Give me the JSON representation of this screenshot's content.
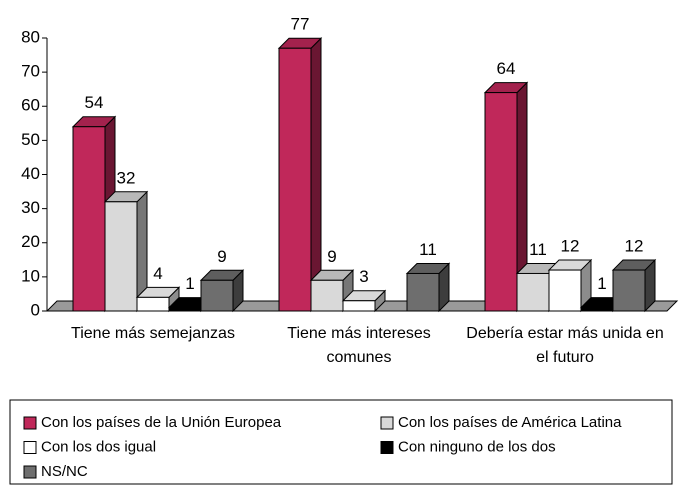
{
  "chart_data": {
    "type": "bar3d",
    "categories": [
      "Tiene más semejanzas",
      "Tiene más intereses comunes",
      "Debería estar más unida en el futuro"
    ],
    "series": [
      {
        "name": "Con los países de la Unión Europea",
        "color": "#c0285a",
        "values": [
          54,
          77,
          64
        ]
      },
      {
        "name": "Con los países de América Latina",
        "color": "#d9d9d9",
        "values": [
          32,
          9,
          11
        ]
      },
      {
        "name": "Con los dos igual",
        "color": "#ffffff",
        "values": [
          4,
          3,
          12
        ]
      },
      {
        "name": "Con ninguno de los dos",
        "color": "#000000",
        "values": [
          1,
          null,
          1
        ]
      },
      {
        "name": "NS/NC",
        "color": "#6e6e6e",
        "values": [
          9,
          11,
          12
        ]
      }
    ],
    "ylim": [
      0,
      80
    ],
    "yticks": [
      0,
      10,
      20,
      30,
      40,
      50,
      60,
      70,
      80
    ],
    "legend": "bottom"
  }
}
